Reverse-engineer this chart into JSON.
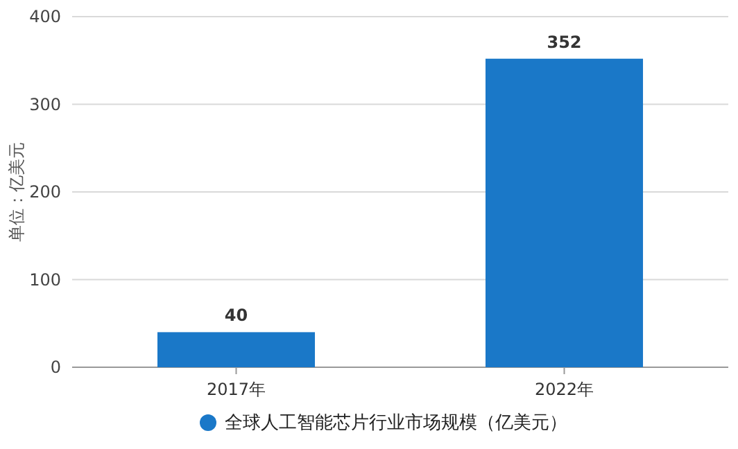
{
  "chart_data": {
    "type": "bar",
    "ylabel": "单位：亿美元",
    "categories": [
      "2017年",
      "2022年"
    ],
    "series": [
      {
        "name": "全球人工智能芯片行业市场规模（亿美元）",
        "color": "#1a78c8",
        "values": [
          40,
          352
        ]
      }
    ],
    "ylim": [
      0,
      400
    ],
    "yticks": [
      0,
      100,
      200,
      300,
      400
    ],
    "grid": "y",
    "legend": "bottom",
    "marker": "circle",
    "data_labels": true
  }
}
